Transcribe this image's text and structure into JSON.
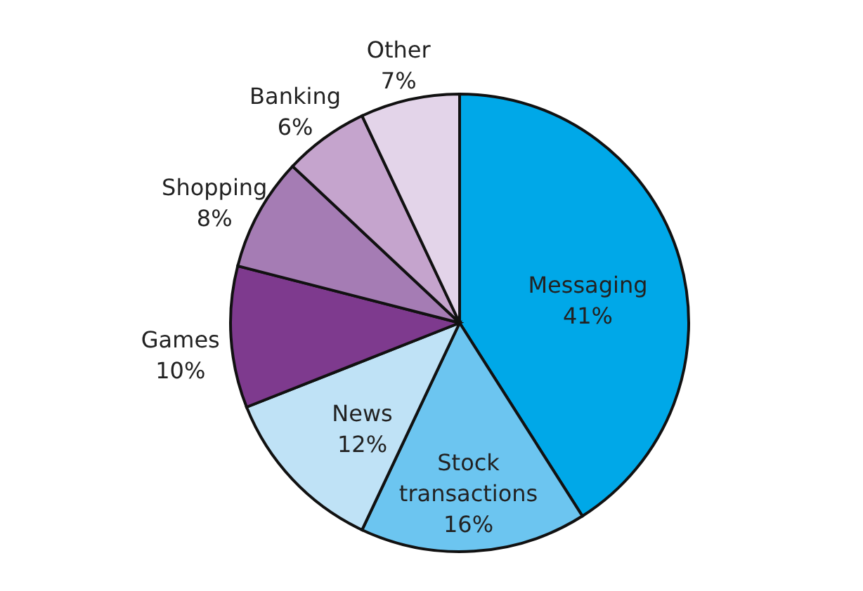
{
  "chart_data": {
    "type": "pie",
    "categories": [
      "Messaging",
      "Stock transactions",
      "News",
      "Games",
      "Shopping",
      "Banking",
      "Other"
    ],
    "values": [
      41,
      16,
      12,
      10,
      8,
      6,
      7
    ],
    "value_labels": [
      "41%",
      "16%",
      "12%",
      "10%",
      "8%",
      "6%",
      "7%"
    ],
    "colors": [
      "#00a8e8",
      "#6cc5f0",
      "#bfe2f6",
      "#7e3a8e",
      "#a57cb4",
      "#c5a4cd",
      "#e3d4e9"
    ]
  }
}
